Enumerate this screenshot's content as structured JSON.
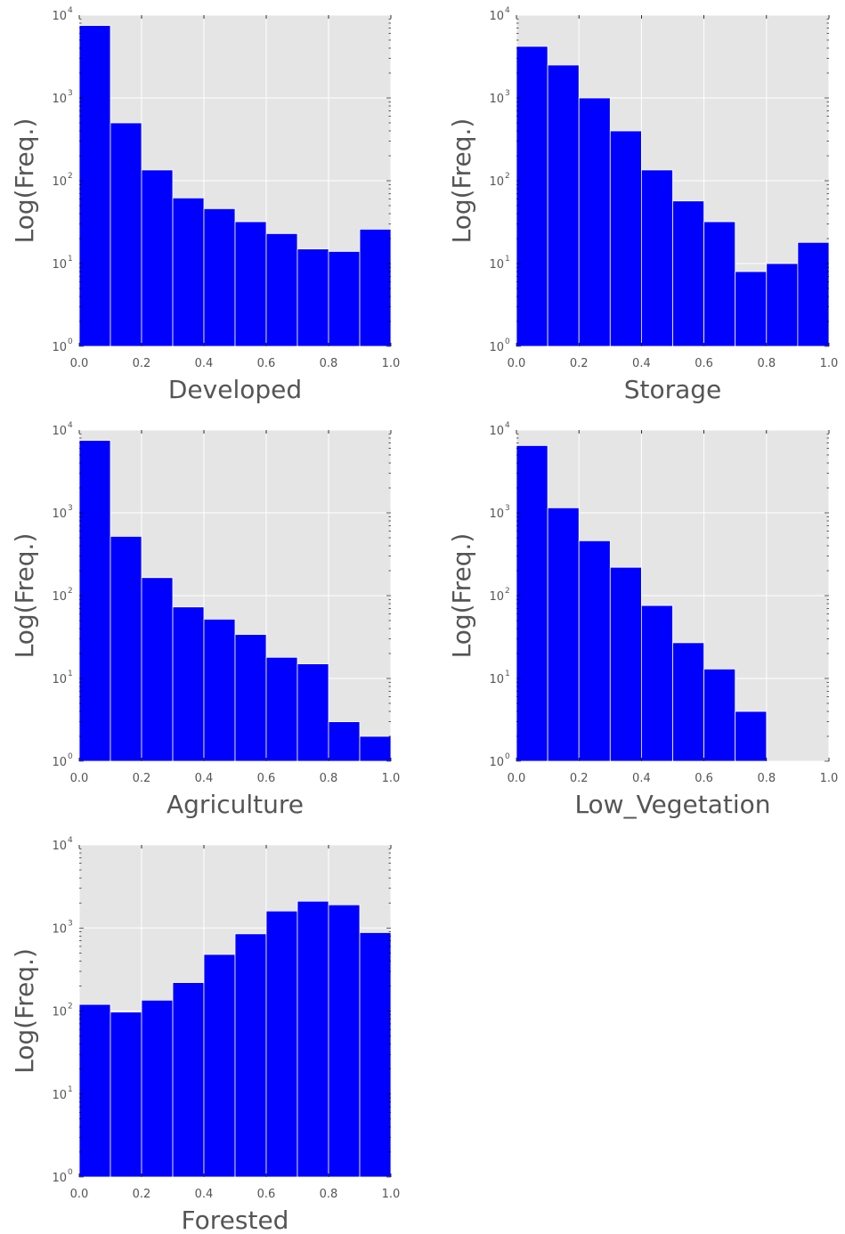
{
  "style": {
    "bar_color": "#0000ff",
    "bar_edge_color": "#ffffff",
    "plot_background": "#e5e5e5",
    "grid_color": "#ffffff",
    "text_color": "#555555"
  },
  "chart_data": [
    {
      "type": "bar",
      "xlabel": "Developed",
      "ylabel": "Log(Freq.)",
      "xlim": [
        0,
        1
      ],
      "ylim": [
        1,
        10000
      ],
      "yscale": "log",
      "grid": true,
      "xticks": [
        "0.0",
        "0.2",
        "0.4",
        "0.6",
        "0.8",
        "1.0"
      ],
      "yticks": [
        {
          "base": "10",
          "exp": "0"
        },
        {
          "base": "10",
          "exp": "1"
        },
        {
          "base": "10",
          "exp": "2"
        },
        {
          "base": "10",
          "exp": "3"
        },
        {
          "base": "10",
          "exp": "4"
        }
      ],
      "bin_edges": [
        0.0,
        0.1,
        0.2,
        0.3,
        0.4,
        0.5,
        0.6,
        0.7,
        0.8,
        0.9,
        1.0
      ],
      "values": [
        7500,
        500,
        135,
        62,
        46,
        32,
        23,
        15,
        14,
        26
      ]
    },
    {
      "type": "bar",
      "xlabel": "Storage",
      "ylabel": "Log(Freq.)",
      "xlim": [
        0,
        1
      ],
      "ylim": [
        1,
        10000
      ],
      "yscale": "log",
      "grid": true,
      "xticks": [
        "0.0",
        "0.2",
        "0.4",
        "0.6",
        "0.8",
        "1.0"
      ],
      "yticks": [
        {
          "base": "10",
          "exp": "0"
        },
        {
          "base": "10",
          "exp": "1"
        },
        {
          "base": "10",
          "exp": "2"
        },
        {
          "base": "10",
          "exp": "3"
        },
        {
          "base": "10",
          "exp": "4"
        }
      ],
      "bin_edges": [
        0.0,
        0.1,
        0.2,
        0.3,
        0.4,
        0.5,
        0.6,
        0.7,
        0.8,
        0.9,
        1.0
      ],
      "values": [
        4200,
        2500,
        1000,
        400,
        135,
        57,
        32,
        8,
        10,
        18
      ]
    },
    {
      "type": "bar",
      "xlabel": "Agriculture",
      "ylabel": "Log(Freq.)",
      "xlim": [
        0,
        1
      ],
      "ylim": [
        1,
        10000
      ],
      "yscale": "log",
      "grid": true,
      "xticks": [
        "0.0",
        "0.2",
        "0.4",
        "0.6",
        "0.8",
        "1.0"
      ],
      "yticks": [
        {
          "base": "10",
          "exp": "0"
        },
        {
          "base": "10",
          "exp": "1"
        },
        {
          "base": "10",
          "exp": "2"
        },
        {
          "base": "10",
          "exp": "3"
        },
        {
          "base": "10",
          "exp": "4"
        }
      ],
      "bin_edges": [
        0.0,
        0.1,
        0.2,
        0.3,
        0.4,
        0.5,
        0.6,
        0.7,
        0.8,
        0.9,
        1.0
      ],
      "values": [
        7500,
        520,
        165,
        73,
        52,
        34,
        18,
        15,
        3,
        2
      ]
    },
    {
      "type": "bar",
      "xlabel": "Low_Vegetation",
      "ylabel": "Log(Freq.)",
      "xlim": [
        0,
        1
      ],
      "ylim": [
        1,
        10000
      ],
      "yscale": "log",
      "grid": true,
      "xticks": [
        "0.0",
        "0.2",
        "0.4",
        "0.6",
        "0.8",
        "1.0"
      ],
      "yticks": [
        {
          "base": "10",
          "exp": "0"
        },
        {
          "base": "10",
          "exp": "1"
        },
        {
          "base": "10",
          "exp": "2"
        },
        {
          "base": "10",
          "exp": "3"
        },
        {
          "base": "10",
          "exp": "4"
        }
      ],
      "bin_edges": [
        0.0,
        0.1,
        0.2,
        0.3,
        0.4,
        0.5,
        0.6,
        0.7,
        0.8,
        0.9,
        1.0
      ],
      "values": [
        6500,
        1150,
        460,
        220,
        76,
        27,
        13,
        4,
        0,
        0
      ]
    },
    {
      "type": "bar",
      "xlabel": "Forested",
      "ylabel": "Log(Freq.)",
      "xlim": [
        0,
        1
      ],
      "ylim": [
        1,
        10000
      ],
      "yscale": "log",
      "grid": true,
      "xticks": [
        "0.0",
        "0.2",
        "0.4",
        "0.6",
        "0.8",
        "1.0"
      ],
      "yticks": [
        {
          "base": "10",
          "exp": "0"
        },
        {
          "base": "10",
          "exp": "1"
        },
        {
          "base": "10",
          "exp": "2"
        },
        {
          "base": "10",
          "exp": "3"
        },
        {
          "base": "10",
          "exp": "4"
        }
      ],
      "bin_edges": [
        0.0,
        0.1,
        0.2,
        0.3,
        0.4,
        0.5,
        0.6,
        0.7,
        0.8,
        0.9,
        1.0
      ],
      "values": [
        120,
        97,
        135,
        220,
        480,
        850,
        1600,
        2100,
        1900,
        880
      ]
    }
  ]
}
